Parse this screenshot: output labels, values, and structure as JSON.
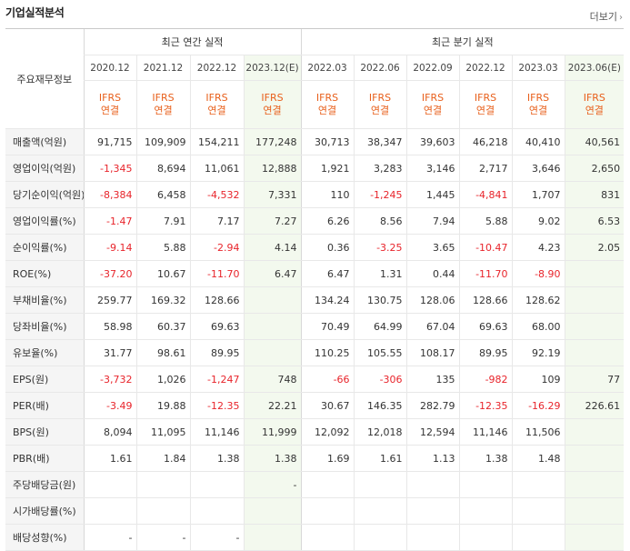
{
  "header": {
    "title": "기업실적분석",
    "more_label": "더보기"
  },
  "table": {
    "corner_label": "주요재무정보",
    "group_headers": [
      "최근 연간 실적",
      "최근 분기 실적"
    ],
    "periods": [
      "2020.12",
      "2021.12",
      "2022.12",
      "2023.12(E)",
      "2022.03",
      "2022.06",
      "2022.09",
      "2022.12",
      "2023.03",
      "2023.06(E)"
    ],
    "accounting_top": "IFRS",
    "accounting_bottom": "연결",
    "rows": [
      {
        "label": "매출액(억원)",
        "values": [
          "91,715",
          "109,909",
          "154,211",
          "177,248",
          "30,713",
          "38,347",
          "39,603",
          "46,218",
          "40,410",
          "40,561"
        ]
      },
      {
        "label": "영업이익(억원)",
        "values": [
          "-1,345",
          "8,694",
          "11,061",
          "12,888",
          "1,921",
          "3,283",
          "3,146",
          "2,717",
          "3,646",
          "2,650"
        ]
      },
      {
        "label": "당기순이익(억원)",
        "values": [
          "-8,384",
          "6,458",
          "-4,532",
          "7,331",
          "110",
          "-1,245",
          "1,445",
          "-4,841",
          "1,707",
          "831"
        ]
      },
      {
        "label": "영업이익률(%)",
        "values": [
          "-1.47",
          "7.91",
          "7.17",
          "7.27",
          "6.26",
          "8.56",
          "7.94",
          "5.88",
          "9.02",
          "6.53"
        ]
      },
      {
        "label": "순이익률(%)",
        "values": [
          "-9.14",
          "5.88",
          "-2.94",
          "4.14",
          "0.36",
          "-3.25",
          "3.65",
          "-10.47",
          "4.23",
          "2.05"
        ]
      },
      {
        "label": "ROE(%)",
        "values": [
          "-37.20",
          "10.67",
          "-11.70",
          "6.47",
          "6.47",
          "1.31",
          "0.44",
          "-11.70",
          "-8.90",
          ""
        ]
      },
      {
        "label": "부채비율(%)",
        "values": [
          "259.77",
          "169.32",
          "128.66",
          "",
          "134.24",
          "130.75",
          "128.06",
          "128.66",
          "128.62",
          ""
        ]
      },
      {
        "label": "당좌비율(%)",
        "values": [
          "58.98",
          "60.37",
          "69.63",
          "",
          "70.49",
          "64.99",
          "67.04",
          "69.63",
          "68.00",
          ""
        ]
      },
      {
        "label": "유보율(%)",
        "values": [
          "31.77",
          "98.61",
          "89.95",
          "",
          "110.25",
          "105.55",
          "108.17",
          "89.95",
          "92.19",
          ""
        ]
      },
      {
        "label": "EPS(원)",
        "values": [
          "-3,732",
          "1,026",
          "-1,247",
          "748",
          "-66",
          "-306",
          "135",
          "-982",
          "109",
          "77"
        ]
      },
      {
        "label": "PER(배)",
        "values": [
          "-3.49",
          "19.88",
          "-12.35",
          "22.21",
          "30.67",
          "146.35",
          "282.79",
          "-12.35",
          "-16.29",
          "226.61"
        ]
      },
      {
        "label": "BPS(원)",
        "values": [
          "8,094",
          "11,095",
          "11,146",
          "11,999",
          "12,092",
          "12,018",
          "12,594",
          "11,146",
          "11,506",
          ""
        ]
      },
      {
        "label": "PBR(배)",
        "values": [
          "1.61",
          "1.84",
          "1.38",
          "1.38",
          "1.69",
          "1.61",
          "1.13",
          "1.38",
          "1.48",
          ""
        ]
      },
      {
        "label": "주당배당금(원)",
        "values": [
          "",
          "",
          "",
          "-",
          "",
          "",
          "",
          "",
          "",
          ""
        ]
      },
      {
        "label": "시가배당률(%)",
        "values": [
          "",
          "",
          "",
          "",
          "",
          "",
          "",
          "",
          "",
          ""
        ]
      },
      {
        "label": "배당성향(%)",
        "values": [
          "-",
          "-",
          "-",
          "",
          "",
          "",
          "",
          "",
          "",
          ""
        ]
      }
    ]
  },
  "colors": {
    "negative": "#e8242b",
    "accounting": "#e8601c",
    "estimate_bg": "#f3f9ee",
    "label_bg": "#f5f5f5"
  }
}
